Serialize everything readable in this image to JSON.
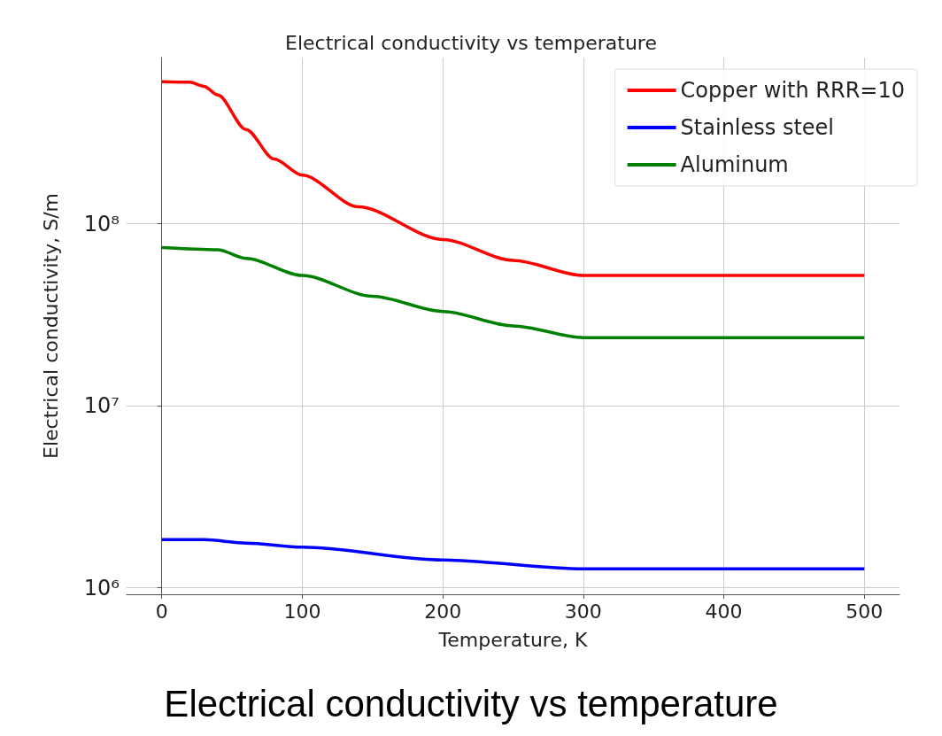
{
  "chart_data": {
    "type": "line",
    "title": "Electrical conductivity vs temperature",
    "xlabel": "Temperature, K",
    "ylabel": "Electrical conductivity, S/m",
    "annotations": [
      "Electrical conductivity vs temperature"
    ],
    "x": [
      0,
      20,
      30,
      40,
      60,
      80,
      100,
      140,
      200,
      250,
      300,
      500
    ],
    "series": [
      {
        "name": "Copper with RRR=10",
        "color": "#ff0000",
        "values": [
          605000000,
          600000000,
          570000000,
          510000000,
          330000000,
          227000000,
          185000000,
          124000000,
          82000000,
          63000000,
          52000000,
          52000000
        ]
      },
      {
        "name": "Stainless steel",
        "color": "#0000ff",
        "x": [
          0,
          30,
          60,
          100,
          200,
          300,
          500
        ],
        "values": [
          1840000,
          1840000,
          1760000,
          1670000,
          1420000,
          1270000,
          1270000
        ]
      },
      {
        "name": "Aluminum",
        "color": "#008000",
        "x": [
          0,
          40,
          60,
          100,
          150,
          200,
          250,
          300,
          500
        ],
        "values": [
          74000000,
          72000000,
          64500000,
          52000000,
          40000000,
          33000000,
          27500000,
          23700000,
          23700000
        ]
      }
    ],
    "xlim": [
      -25,
      525
    ],
    "xticks": [
      0,
      100,
      200,
      300,
      400,
      500
    ],
    "ylim": [
      920000,
      820000000
    ],
    "yticks": [
      {
        "value": 1000000,
        "label": "10⁶"
      },
      {
        "value": 10000000,
        "label": "10⁷"
      },
      {
        "value": 100000000,
        "label": "10⁸"
      }
    ],
    "log": "y",
    "grid": true,
    "legend": "top right",
    "marker": "none",
    "line_style": "solid"
  }
}
